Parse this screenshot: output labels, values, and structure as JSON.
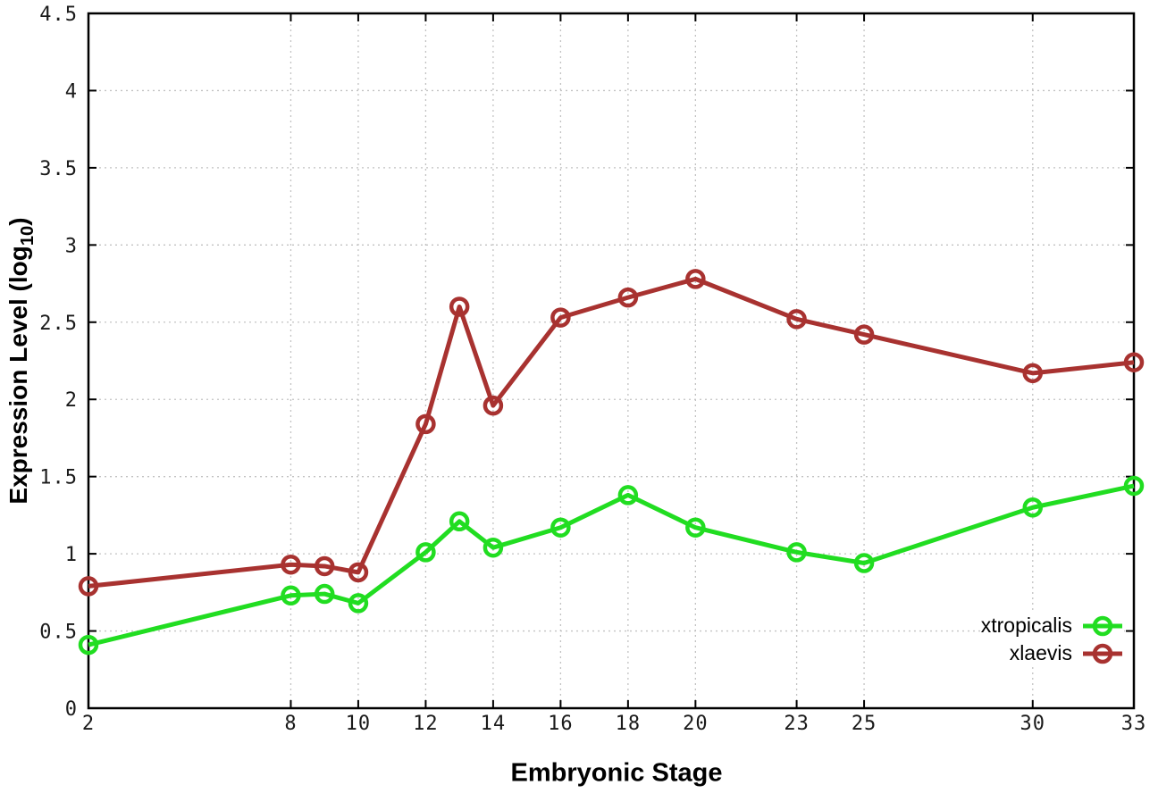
{
  "figure": {
    "ylabel_prefix": "Expression Level (log",
    "ylabel_sub": "10",
    "ylabel_suffix": ")"
  },
  "chart_data": {
    "type": "line",
    "title": "",
    "xlabel": "Embryonic Stage",
    "ylabel": "Expression Level (log10)",
    "xlim": [
      2,
      33
    ],
    "ylim": [
      0,
      4.5
    ],
    "grid": true,
    "grid_style": "dotted",
    "legend_position": "bottom-right",
    "x": [
      2,
      8,
      9,
      10,
      12,
      13,
      14,
      16,
      18,
      20,
      23,
      25,
      30,
      33
    ],
    "xticks": [
      2,
      8,
      10,
      12,
      14,
      16,
      18,
      20,
      23,
      25,
      30,
      33
    ],
    "xticklabels": [
      "2",
      "8",
      "10",
      "12",
      "14",
      "16",
      "18",
      "20",
      "23",
      "25",
      "30",
      "33"
    ],
    "yticks": [
      0,
      0.5,
      1,
      1.5,
      2,
      2.5,
      3,
      3.5,
      4,
      4.5
    ],
    "yticklabels": [
      "0",
      "0.5",
      "1",
      "1.5",
      "2",
      "2.5",
      "3",
      "3.5",
      "4",
      "4.5"
    ],
    "series": [
      {
        "name": "xtropicalis",
        "color": "#21dd21",
        "values": [
          0.41,
          0.73,
          0.74,
          0.68,
          1.01,
          1.21,
          1.04,
          1.17,
          1.38,
          1.17,
          1.01,
          0.94,
          1.3,
          1.44
        ]
      },
      {
        "name": "xlaevis",
        "color": "#a83230",
        "values": [
          0.79,
          0.93,
          0.92,
          0.88,
          1.84,
          2.6,
          1.96,
          2.53,
          2.66,
          2.78,
          2.52,
          2.42,
          2.17,
          2.24
        ]
      }
    ],
    "colors": {
      "border": "#000000",
      "grid": "#c2c2c2",
      "tick_label": "#1a1a1a"
    }
  }
}
